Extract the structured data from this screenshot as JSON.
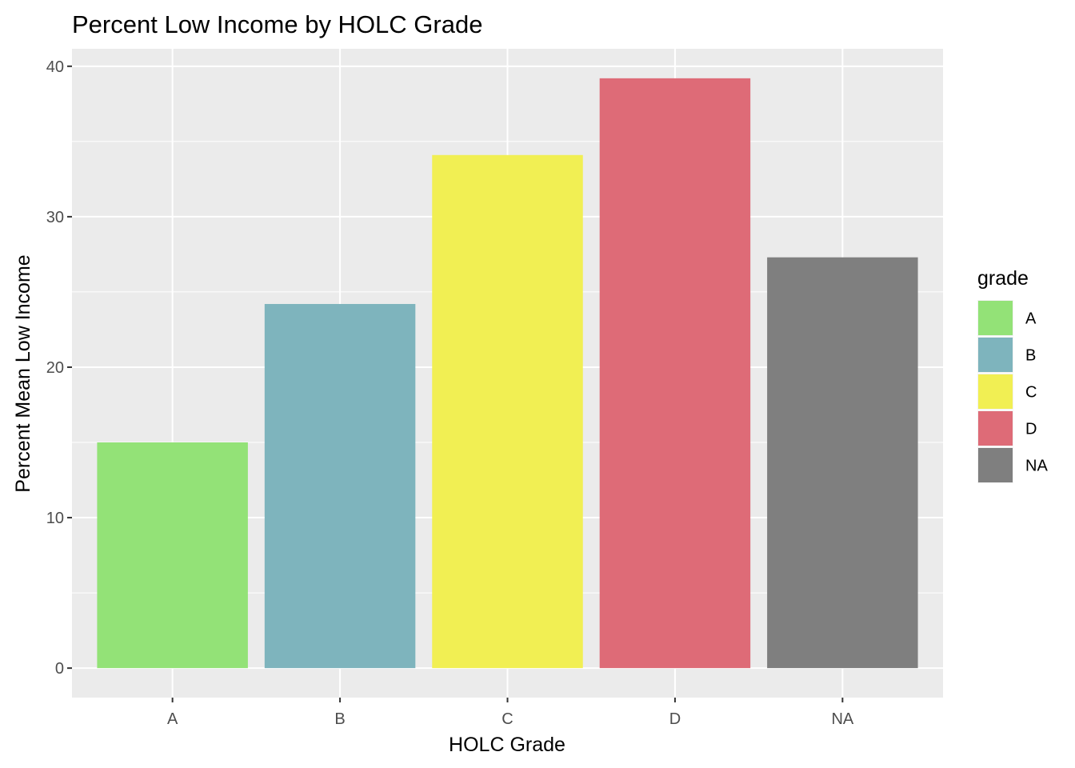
{
  "chart_data": {
    "type": "bar",
    "title": "Percent Low Income by HOLC Grade",
    "xlabel": "HOLC Grade",
    "ylabel": "Percent Mean Low Income",
    "categories": [
      "A",
      "B",
      "C",
      "D",
      "NA"
    ],
    "values": [
      15.0,
      24.2,
      34.1,
      39.2,
      27.3
    ],
    "colors": [
      "#93E277",
      "#7EB4BD",
      "#F1EF53",
      "#DE6B77",
      "#7F7F7F"
    ],
    "ylim": [
      -1.96,
      41.16
    ],
    "yticks": [
      0,
      10,
      20,
      30,
      40
    ],
    "yticks_labels": [
      "0",
      "10",
      "20",
      "30",
      "40"
    ],
    "grid": true,
    "panel_background": "#EBEBEB",
    "grid_color": "#FFFFFF",
    "legend": {
      "title": "grade",
      "position": "right",
      "items": [
        "A",
        "B",
        "C",
        "D",
        "NA"
      ]
    }
  }
}
